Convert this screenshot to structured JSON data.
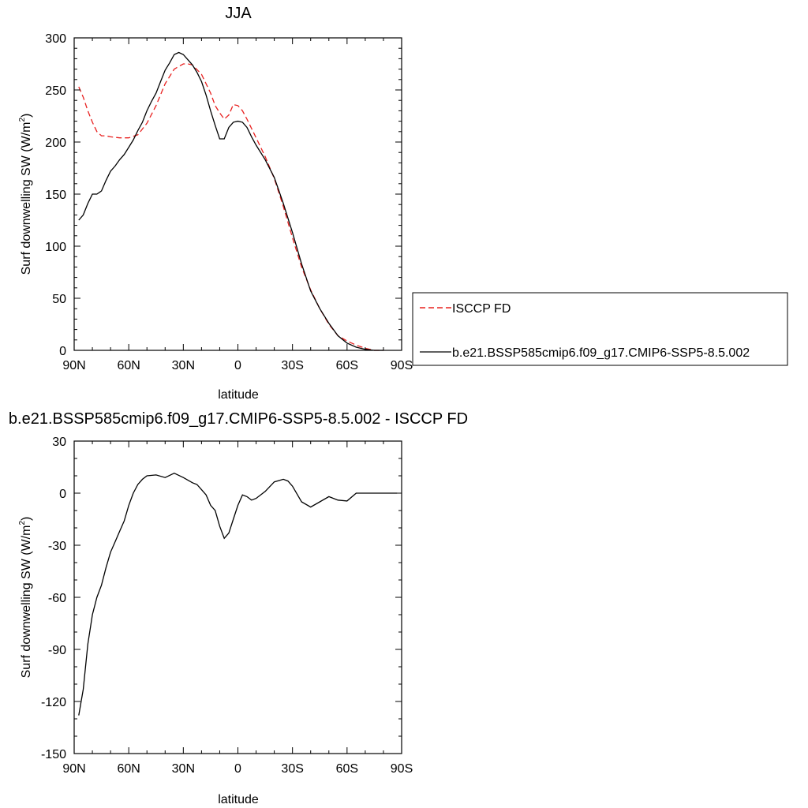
{
  "chart_data": [
    {
      "type": "line",
      "title": "JJA",
      "xlabel": "latitude",
      "ylabel": "Surf downwelling SW (W/m",
      "ylabel_sup": "2",
      "ylabel_close": ")",
      "xlim": [
        90,
        -90
      ],
      "ylim": [
        0,
        300
      ],
      "x_ticks": [
        90,
        60,
        30,
        0,
        -30,
        -60,
        -90
      ],
      "x_tick_labels": [
        "90N",
        "60N",
        "30N",
        "0",
        "30S",
        "60S",
        "90S"
      ],
      "y_ticks": [
        0,
        50,
        100,
        150,
        200,
        250,
        300
      ],
      "y_tick_labels": [
        "0",
        "50",
        "100",
        "150",
        "200",
        "250",
        "300"
      ],
      "grid": false,
      "legend_position": "right",
      "series": [
        {
          "name": "ISCCP FD",
          "color": "#e8201f",
          "dash": "dashed",
          "x": [
            87.5,
            85,
            82.5,
            80,
            77.5,
            75,
            72.5,
            70,
            65,
            60,
            55,
            50,
            45,
            40,
            35,
            30,
            27.5,
            25,
            20,
            15,
            12.5,
            10,
            7.5,
            5,
            2.5,
            0,
            -2.5,
            -5,
            -10,
            -15,
            -20,
            -25,
            -30,
            -35,
            -40,
            -45,
            -50,
            -55,
            -60,
            -65,
            -70,
            -75,
            -80
          ],
          "y": [
            253,
            243,
            230,
            219,
            210,
            206,
            206,
            205,
            204,
            204,
            207,
            218,
            235,
            256,
            270,
            275,
            275,
            274,
            265,
            247,
            235,
            228,
            222,
            226,
            236,
            235,
            230,
            222,
            204,
            186,
            165,
            138,
            108,
            80,
            58,
            40,
            25,
            14,
            9,
            5,
            2,
            0,
            0
          ]
        },
        {
          "name": "b.e21.BSSP585cmip6.f09_g17.CMIP6-SSP5-8.5.002",
          "color": "#000000",
          "dash": "solid",
          "x": [
            87.5,
            85,
            82.5,
            80,
            77.5,
            75,
            72.5,
            70,
            67.5,
            65,
            62.5,
            60,
            57.5,
            55,
            52.5,
            50,
            47.5,
            45,
            42.5,
            40,
            37.5,
            35,
            32.5,
            30,
            27.5,
            25,
            22.5,
            20,
            17.5,
            15,
            12.5,
            10,
            7.5,
            5,
            2.5,
            0,
            -2.5,
            -5,
            -7.5,
            -10,
            -15,
            -20,
            -25,
            -30,
            -35,
            -40,
            -45,
            -50,
            -55,
            -60,
            -65,
            -70,
            -75,
            -80
          ],
          "y": [
            125,
            130,
            141,
            150,
            150,
            153,
            163,
            172,
            177,
            183,
            188,
            195,
            202,
            211,
            219,
            230,
            239,
            247,
            258,
            269,
            276,
            284,
            286,
            284,
            279,
            274,
            267,
            258,
            245,
            230,
            216,
            203,
            203,
            214,
            219,
            220,
            219,
            214,
            205,
            197,
            183,
            166,
            141,
            113,
            83,
            57,
            40,
            26,
            14,
            7,
            3,
            1,
            0,
            0
          ]
        }
      ]
    },
    {
      "type": "line",
      "title": "b.e21.BSSP585cmip6.f09_g17.CMIP6-SSP5-8.5.002 - ISCCP FD",
      "xlabel": "latitude",
      "ylabel": "Surf downwelling SW (W/m",
      "ylabel_sup": "2",
      "ylabel_close": ")",
      "xlim": [
        90,
        -90
      ],
      "ylim": [
        -150,
        30
      ],
      "x_ticks": [
        90,
        60,
        30,
        0,
        -30,
        -60,
        -90
      ],
      "x_tick_labels": [
        "90N",
        "60N",
        "30N",
        "0",
        "30S",
        "60S",
        "90S"
      ],
      "y_ticks": [
        -150,
        -120,
        -90,
        -60,
        -30,
        0,
        30
      ],
      "y_tick_labels": [
        "-150",
        "-120",
        "-90",
        "-60",
        "-30",
        "0",
        "30"
      ],
      "grid": false,
      "series": [
        {
          "color": "#000000",
          "dash": "solid",
          "x": [
            87.5,
            85,
            82.5,
            80,
            77.5,
            75,
            72.5,
            70,
            67.5,
            65,
            62.5,
            60,
            57.5,
            55,
            52.5,
            50,
            45,
            40,
            35,
            30,
            25,
            22.5,
            20,
            17.5,
            15,
            12.5,
            10,
            7.5,
            5,
            2.5,
            0,
            -2.5,
            -5,
            -7.5,
            -10,
            -15,
            -20,
            -25,
            -27.5,
            -30,
            -35,
            -40,
            -45,
            -50,
            -55,
            -60,
            -65,
            -70,
            -75,
            -80,
            -85,
            -87.5
          ],
          "y": [
            -128,
            -113,
            -87,
            -70,
            -60,
            -53,
            -43,
            -34,
            -28,
            -22,
            -16,
            -7,
            0,
            5,
            8,
            10,
            10.5,
            9,
            11.5,
            9,
            6,
            5,
            2,
            -1,
            -7,
            -10,
            -19,
            -26,
            -23,
            -15,
            -7,
            -1,
            -2,
            -4,
            -3,
            1,
            6.5,
            8,
            7,
            4,
            -5,
            -8,
            -5,
            -2,
            -4,
            -4.5,
            0,
            0,
            0,
            0,
            0,
            0
          ]
        }
      ]
    }
  ]
}
